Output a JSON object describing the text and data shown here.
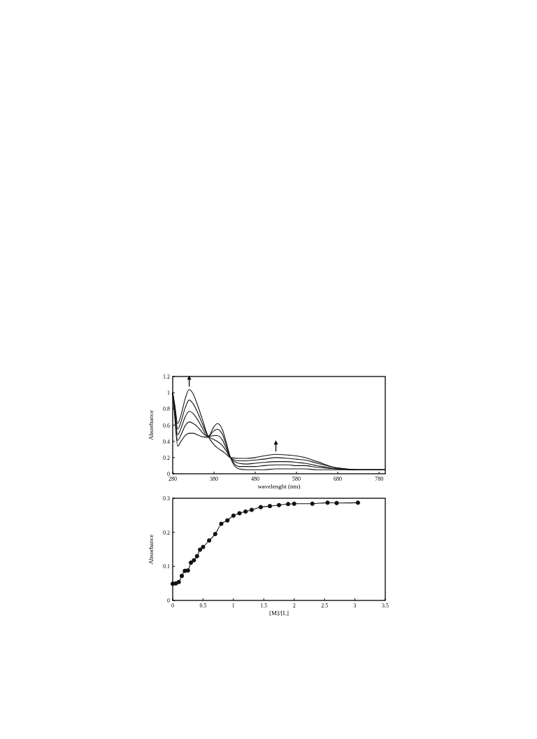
{
  "chart_data": [
    {
      "type": "line",
      "xlabel": "wavelenght (nm)",
      "ylabel": "Absorbance",
      "xlim": [
        280,
        795
      ],
      "xticks": [
        280,
        380,
        480,
        580,
        680,
        780
      ],
      "ylim": [
        0,
        1.2
      ],
      "yticks": [
        0,
        0.2,
        0.4,
        0.6,
        0.8,
        1,
        1.2
      ],
      "grid": false,
      "marker": "none",
      "line_style": "solid",
      "x": [
        280,
        285,
        292,
        300,
        310,
        320,
        330,
        340,
        350,
        365,
        380,
        388,
        400,
        410,
        420,
        440,
        460,
        480,
        500,
        530,
        560,
        580,
        600,
        630,
        680,
        730,
        795
      ],
      "series": [
        {
          "color": "#111111",
          "values": [
            1.0,
            0.7,
            0.34,
            0.4,
            0.47,
            0.5,
            0.5,
            0.48,
            0.46,
            0.45,
            0.58,
            0.62,
            0.55,
            0.38,
            0.2,
            0.06,
            0.05,
            0.05,
            0.05,
            0.06,
            0.06,
            0.06,
            0.06,
            0.05,
            0.05,
            0.05,
            0.05
          ]
        },
        {
          "color": "#111111",
          "values": [
            1.0,
            0.74,
            0.41,
            0.48,
            0.59,
            0.64,
            0.62,
            0.58,
            0.52,
            0.46,
            0.53,
            0.55,
            0.49,
            0.35,
            0.2,
            0.09,
            0.09,
            0.09,
            0.1,
            0.11,
            0.11,
            0.1,
            0.1,
            0.08,
            0.06,
            0.05,
            0.05
          ]
        },
        {
          "color": "#111111",
          "values": [
            1.0,
            0.78,
            0.48,
            0.56,
            0.7,
            0.77,
            0.74,
            0.67,
            0.58,
            0.46,
            0.47,
            0.47,
            0.42,
            0.31,
            0.2,
            0.13,
            0.12,
            0.13,
            0.14,
            0.15,
            0.15,
            0.14,
            0.13,
            0.1,
            0.06,
            0.05,
            0.05
          ]
        },
        {
          "color": "#111111",
          "values": [
            1.0,
            0.82,
            0.55,
            0.64,
            0.81,
            0.91,
            0.86,
            0.76,
            0.64,
            0.47,
            0.42,
            0.4,
            0.35,
            0.28,
            0.2,
            0.16,
            0.16,
            0.17,
            0.18,
            0.2,
            0.19,
            0.18,
            0.17,
            0.13,
            0.07,
            0.05,
            0.05
          ]
        },
        {
          "color": "#111111",
          "values": [
            1.0,
            0.85,
            0.62,
            0.72,
            0.92,
            1.04,
            0.98,
            0.85,
            0.7,
            0.47,
            0.36,
            0.32,
            0.28,
            0.24,
            0.2,
            0.19,
            0.19,
            0.2,
            0.22,
            0.24,
            0.23,
            0.22,
            0.2,
            0.15,
            0.07,
            0.05,
            0.05
          ]
        }
      ]
    },
    {
      "type": "line",
      "xlabel": "[M]/[L]",
      "ylabel": "Absorbance",
      "xlim": [
        0,
        3.5
      ],
      "xticks": [
        0,
        0.5,
        1,
        1.5,
        2,
        2.5,
        3,
        3.5
      ],
      "ylim": [
        0,
        0.3
      ],
      "yticks": [
        0,
        0.1,
        0.2,
        0.3
      ],
      "grid": false,
      "marker": "circle",
      "line_style": "solid",
      "x": [
        0,
        0.05,
        0.1,
        0.15,
        0.2,
        0.25,
        0.3,
        0.35,
        0.4,
        0.45,
        0.5,
        0.6,
        0.7,
        0.8,
        0.9,
        1.0,
        1.1,
        1.2,
        1.3,
        1.45,
        1.6,
        1.75,
        1.9,
        2.0,
        2.3,
        2.55,
        2.7,
        3.05
      ],
      "series": [
        {
          "color": "#111111",
          "values": [
            0.049,
            0.05,
            0.054,
            0.072,
            0.087,
            0.088,
            0.111,
            0.118,
            0.13,
            0.149,
            0.157,
            0.176,
            0.195,
            0.225,
            0.235,
            0.249,
            0.256,
            0.261,
            0.266,
            0.274,
            0.277,
            0.28,
            0.283,
            0.284,
            0.284,
            0.287,
            0.286,
            0.287
          ]
        }
      ]
    }
  ]
}
